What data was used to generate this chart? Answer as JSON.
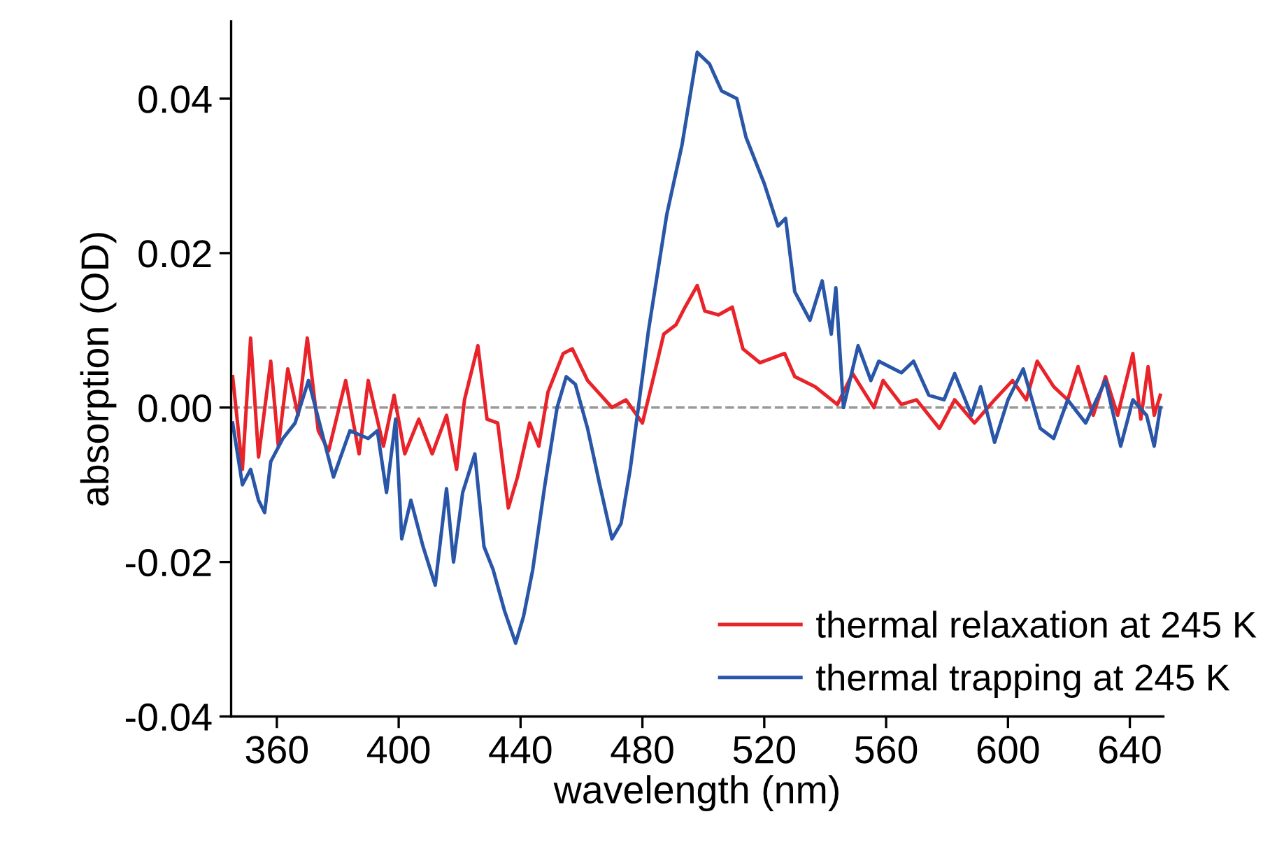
{
  "chart_data": {
    "type": "line",
    "xlabel": "wavelength (nm)",
    "ylabel": "absorption (OD)",
    "xlim": [
      345,
      651
    ],
    "ylim": [
      -0.04,
      0.05
    ],
    "xticks": [
      360,
      400,
      440,
      480,
      520,
      560,
      600,
      640
    ],
    "yticks": [
      {
        "value": -0.04,
        "label": "-0.04"
      },
      {
        "value": -0.02,
        "label": "-0.02"
      },
      {
        "value": 0,
        "label": "0.00"
      },
      {
        "value": 0.02,
        "label": "0.02"
      },
      {
        "value": 0.04,
        "label": "0.04"
      }
    ],
    "legend": "bottom right",
    "grid": false,
    "marker": "none",
    "line_style": "solid",
    "ref_lines": [
      {
        "axis": "y",
        "value": 0,
        "color": "#999999",
        "line_style": "dashed"
      }
    ],
    "series": [
      {
        "name": "thermal relaxation at 245 K",
        "color": "#e8242a",
        "x": [
          345.5,
          348.7,
          351.4,
          354,
          358,
          360.5,
          363.6,
          367,
          370,
          373.6,
          377,
          382.6,
          387,
          390,
          395,
          398.5,
          402,
          406.6,
          411,
          415.7,
          419,
          421.6,
          426,
          429,
          432.5,
          436,
          439,
          443,
          446,
          449,
          454,
          457,
          462,
          470,
          474.6,
          480,
          483.7,
          487,
          491,
          494,
          498,
          500.5,
          505,
          509.5,
          513,
          518.6,
          526.7,
          530,
          536.7,
          544,
          549,
          556,
          559,
          565,
          570,
          577.5,
          582.5,
          589,
          595.6,
          601.5,
          606,
          609.6,
          615,
          619.6,
          623,
          628,
          632,
          636,
          641,
          643.6,
          646,
          648,
          650
        ],
        "values": [
          0.004,
          -0.008,
          0.009,
          -0.0064,
          0.006,
          -0.005,
          0.005,
          -0.001,
          0.009,
          -0.003,
          -0.0056,
          0.0035,
          -0.006,
          0.0035,
          -0.005,
          0.0016,
          -0.006,
          -0.0015,
          -0.006,
          -0.001,
          -0.008,
          0.001,
          0.008,
          -0.0015,
          -0.002,
          -0.013,
          -0.009,
          -0.002,
          -0.005,
          0.002,
          0.007,
          0.0076,
          0.0035,
          0.0,
          0.001,
          -0.002,
          0.004,
          0.0095,
          0.0107,
          0.013,
          0.0158,
          0.0125,
          0.012,
          0.013,
          0.0076,
          0.0058,
          0.007,
          0.004,
          0.0027,
          0.0004,
          0.0044,
          0.0,
          0.0035,
          0.0004,
          0.001,
          -0.0027,
          0.001,
          -0.002,
          0.001,
          0.0035,
          0.001,
          0.006,
          0.0027,
          0.001,
          0.0053,
          -0.001,
          0.004,
          -0.001,
          0.007,
          -0.0015,
          0.0053,
          -0.001,
          0.0016
        ]
      },
      {
        "name": "thermal trapping at 245 K",
        "color": "#2a56a8",
        "x": [
          345.5,
          348.7,
          351.4,
          354,
          356,
          358,
          362,
          366,
          370.4,
          374,
          378.6,
          384,
          390,
          393,
          396,
          399,
          401,
          404,
          408,
          412,
          415.7,
          418,
          421,
          425,
          428,
          431,
          434.8,
          438.4,
          441,
          444,
          448,
          452,
          455,
          458,
          462,
          466,
          470,
          473,
          476,
          479,
          482,
          488,
          493,
          498,
          502,
          506,
          511,
          514,
          520,
          524.5,
          527,
          530,
          535,
          539,
          542,
          543.5,
          546,
          550.8,
          555,
          557.6,
          565,
          569,
          574,
          579,
          582.5,
          588,
          591,
          595.6,
          600,
          605,
          610.6,
          615,
          619.6,
          625.5,
          632,
          637,
          641,
          645.5,
          648,
          650
        ],
        "values": [
          -0.002,
          -0.01,
          -0.008,
          -0.012,
          -0.0136,
          -0.007,
          -0.004,
          -0.002,
          0.0035,
          -0.002,
          -0.009,
          -0.003,
          -0.004,
          -0.003,
          -0.011,
          -0.0015,
          -0.017,
          -0.012,
          -0.018,
          -0.023,
          -0.0105,
          -0.02,
          -0.011,
          -0.006,
          -0.018,
          -0.021,
          -0.0264,
          -0.0305,
          -0.027,
          -0.021,
          -0.01,
          0.0,
          0.004,
          0.003,
          -0.0027,
          -0.01,
          -0.017,
          -0.015,
          -0.008,
          0.001,
          0.01,
          0.025,
          0.034,
          0.046,
          0.0445,
          0.041,
          0.04,
          0.035,
          0.029,
          0.0235,
          0.0245,
          0.015,
          0.0113,
          0.0164,
          0.0095,
          0.0155,
          0.0,
          0.008,
          0.0035,
          0.006,
          0.0045,
          0.006,
          0.0016,
          0.001,
          0.0044,
          -0.001,
          0.0027,
          -0.0045,
          0.001,
          0.005,
          -0.0027,
          -0.004,
          0.001,
          -0.002,
          0.0035,
          -0.005,
          0.001,
          -0.001,
          -0.005,
          0.0
        ]
      }
    ]
  }
}
